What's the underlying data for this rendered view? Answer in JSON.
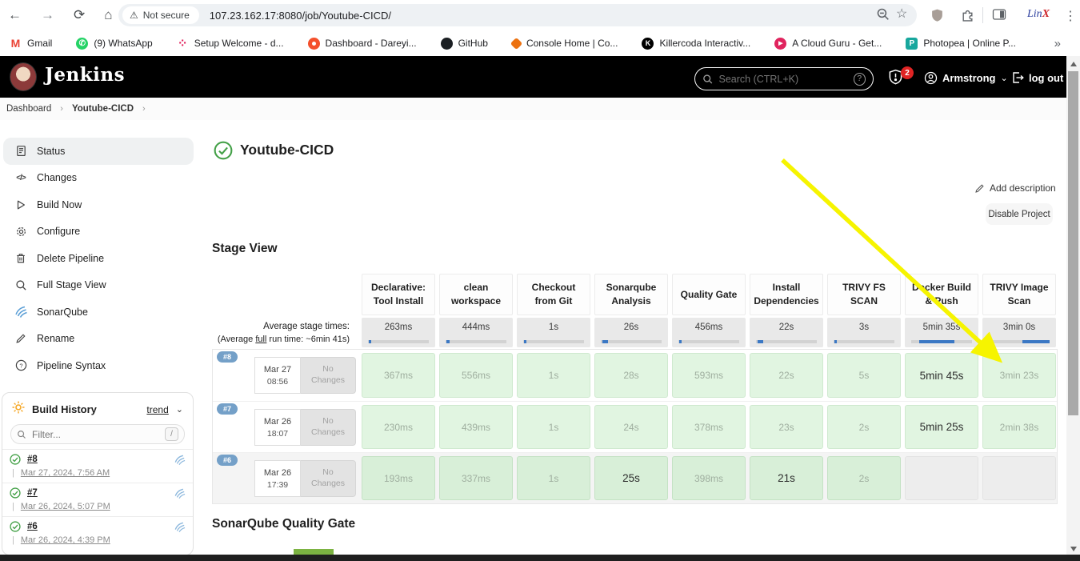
{
  "icons": {
    "back": "←",
    "forward": "→",
    "reload": "⟳",
    "home": "⌂",
    "warning": "⚠",
    "star": "☆",
    "kebab": "⋮",
    "overflow": "»",
    "chevron_down": "⌄",
    "chevron_right": "›",
    "help": "?",
    "slash_hint": "/",
    "code": "</>",
    "gear": "⚙",
    "vbar": "|",
    "whatsapp_phone": "✆",
    "gmail_m": "M",
    "killercoda_k": "K",
    "photopea_p": "P",
    "acg_play": "▶",
    "pencil": "✎"
  },
  "browser": {
    "security_label": "Not secure",
    "url": "107.23.162.17:8080/job/Youtube-CICD/",
    "linux_a": "Lin",
    "linux_b": "X",
    "bookmarks": [
      {
        "label": "Gmail"
      },
      {
        "label": "(9) WhatsApp"
      },
      {
        "label": "Setup Welcome - d..."
      },
      {
        "label": "Dashboard - Dareyi..."
      },
      {
        "label": "GitHub"
      },
      {
        "label": "Console Home | Co..."
      },
      {
        "label": "Killercoda Interactiv..."
      },
      {
        "label": "A Cloud Guru - Get..."
      },
      {
        "label": "Photopea | Online P..."
      }
    ]
  },
  "header": {
    "brand": "Jenkins",
    "search_placeholder": "Search (CTRL+K)",
    "notif_count": "2",
    "user": "Armstrong",
    "logout_label": "log out"
  },
  "breadcrumb": {
    "items": [
      "Dashboard",
      "Youtube-CICD"
    ]
  },
  "sidebar": {
    "items": [
      {
        "label": "Status"
      },
      {
        "label": "Changes"
      },
      {
        "label": "Build Now"
      },
      {
        "label": "Configure"
      },
      {
        "label": "Delete Pipeline"
      },
      {
        "label": "Full Stage View"
      },
      {
        "label": "SonarQube"
      },
      {
        "label": "Rename"
      },
      {
        "label": "Pipeline Syntax"
      }
    ]
  },
  "build_history": {
    "title": "Build History",
    "trend_label": "trend",
    "filter_placeholder": "Filter...",
    "builds": [
      {
        "id": "#8",
        "date": "Mar 27, 2024, 7:56 AM"
      },
      {
        "id": "#7",
        "date": "Mar 26, 2024, 5:07 PM"
      },
      {
        "id": "#6",
        "date": "Mar 26, 2024, 4:39 PM"
      }
    ]
  },
  "main": {
    "title": "Youtube-CICD",
    "add_description_label": "Add description",
    "disable_project_label": "Disable Project",
    "stage_view_title": "Stage View",
    "sonarqube_heading": "SonarQube Quality Gate",
    "avg_line1": "Average stage times:",
    "avg_line2_a": "(Average ",
    "avg_line2_b": "full",
    "avg_line2_c": " run time: ~6min 41s)"
  },
  "stage_view": {
    "columns": [
      {
        "name": "Declarative: Tool Install",
        "avg": "263ms",
        "bar": [
          1,
          5
        ]
      },
      {
        "name": "clean workspace",
        "avg": "444ms",
        "bar": [
          1,
          6
        ]
      },
      {
        "name": "Checkout from Git",
        "avg": "1s",
        "bar": [
          1,
          5
        ]
      },
      {
        "name": "Sonarqube Analysis",
        "avg": "26s",
        "bar": [
          2,
          11
        ]
      },
      {
        "name": "Quality Gate",
        "avg": "456ms",
        "bar": [
          1,
          5
        ]
      },
      {
        "name": "Install Dependencies",
        "avg": "22s",
        "bar": [
          2,
          11
        ]
      },
      {
        "name": "TRIVY FS SCAN",
        "avg": "3s",
        "bar": [
          1,
          5
        ]
      },
      {
        "name": "Docker Build & Push",
        "avg": "5min 35s",
        "bar": [
          13,
          71
        ]
      },
      {
        "name": "TRIVY Image Scan",
        "avg": "3min 0s",
        "bar": [
          55,
          100
        ]
      }
    ],
    "rows": [
      {
        "id": "#8",
        "date": "Mar 27",
        "time": "08:56",
        "changes": "No Changes",
        "cells": [
          {
            "v": "367ms"
          },
          {
            "v": "556ms"
          },
          {
            "v": "1s"
          },
          {
            "v": "28s"
          },
          {
            "v": "593ms"
          },
          {
            "v": "22s"
          },
          {
            "v": "5s"
          },
          {
            "v": "5min 45s",
            "emph": true
          },
          {
            "v": "3min 23s"
          }
        ]
      },
      {
        "id": "#7",
        "date": "Mar 26",
        "time": "18:07",
        "changes": "No Changes",
        "cells": [
          {
            "v": "230ms"
          },
          {
            "v": "439ms"
          },
          {
            "v": "1s"
          },
          {
            "v": "24s"
          },
          {
            "v": "378ms"
          },
          {
            "v": "23s"
          },
          {
            "v": "2s"
          },
          {
            "v": "5min 25s",
            "emph": true
          },
          {
            "v": "2min 38s"
          }
        ]
      },
      {
        "id": "#6",
        "date": "Mar 26",
        "time": "17:39",
        "changes": "No Changes",
        "cells": [
          {
            "v": "193ms"
          },
          {
            "v": "337ms"
          },
          {
            "v": "1s"
          },
          {
            "v": "25s",
            "emph": true
          },
          {
            "v": "398ms"
          },
          {
            "v": "21s",
            "emph": true
          },
          {
            "v": "2s"
          },
          {
            "v": "",
            "empty": true
          },
          {
            "v": "",
            "empty": true
          }
        ]
      }
    ]
  },
  "colors": {
    "arrow_yellow": "#f6f400",
    "bar_blue": "#3b78c4",
    "cell_green": "#e1f5e1",
    "cell_green_dark": "#d8efd8",
    "badge_blue": "#74a0c8",
    "notif_red": "#e02424",
    "success_green": "#43a047",
    "quality_gate_green": "#7cb342"
  }
}
